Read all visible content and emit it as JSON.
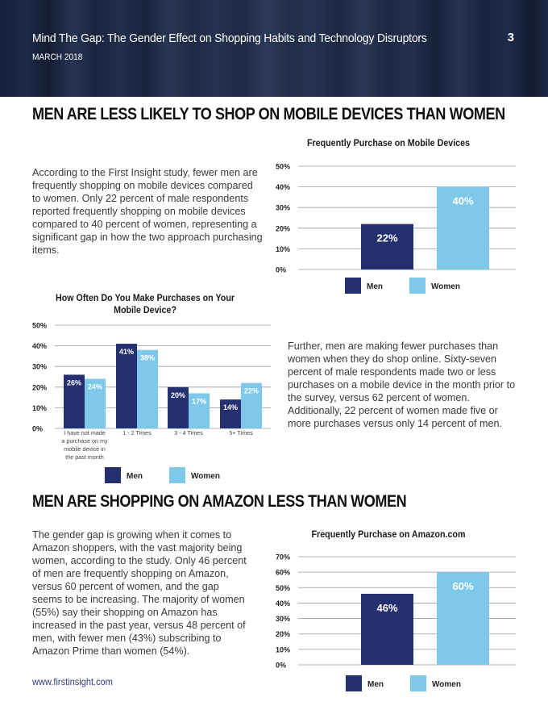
{
  "header": {
    "title": "Mind The Gap:  The Gender Effect on Shopping Habits and Technology Disruptors",
    "date": "MARCH 2018",
    "page_number": "3"
  },
  "section1": {
    "title": "MEN ARE LESS LIKELY TO SHOP ON MOBILE DEVICES THAN WOMEN",
    "paragraph": "According to the First Insight study, fewer men are frequently shopping on mobile devices compared to women. Only 22 percent of male respondents reported frequently shopping on mobile devices compared to 40 percent of women, representing a significant gap in how the two approach purchasing items."
  },
  "section1b": {
    "paragraph": "Further, men are making fewer purchases than women when they do shop online. Sixty-seven percent of male respondents made two or less purchases on a mobile device in the month prior to the survey, versus 62 percent of women. Additionally, 22 percent of women made five or more purchases versus only 14 percent of men."
  },
  "section2": {
    "title": "MEN ARE SHOPPING ON AMAZON LESS THAN WOMEN",
    "paragraph": "The gender gap is growing when it comes to Amazon shoppers, with the vast majority being women, according to the study. Only 46 percent of men are frequently shopping on Amazon, versus 60 percent of women, and the gap seems to be increasing. The majority of women (55%) say their shopping on Amazon has increased in the past year, versus 48 percent of men, with fewer men (43%) subscribing to Amazon Prime than women (54%)."
  },
  "footer": {
    "url": "www.firstinsight.com"
  },
  "colors": {
    "men": "#253070",
    "women": "#7ec8ea",
    "header_bg": "#18223c",
    "grid": "#9a9a9a"
  },
  "chart_data": [
    {
      "type": "bar",
      "title": "Frequently Purchase on Mobile Devices",
      "categories": [
        ""
      ],
      "series": [
        {
          "name": "Men",
          "values": [
            22
          ]
        },
        {
          "name": "Women",
          "values": [
            40
          ]
        }
      ],
      "data_labels": [
        "22%",
        "40%"
      ],
      "yticks": [
        "0%",
        "10%",
        "20%",
        "30%",
        "40%",
        "50%"
      ],
      "ylim": [
        0,
        50
      ],
      "legend": [
        "Men",
        "Women"
      ]
    },
    {
      "type": "bar",
      "title": "How Often Do You Make Purchases on Your Mobile Device?",
      "categories": [
        "I have not made a purchase on my mobile device in the past month",
        "1 - 2 Times",
        "3 - 4 Times",
        "5+ Times"
      ],
      "category_lines": [
        [
          "I have not made",
          "a purchase on my",
          "mobile device in",
          "the past month"
        ],
        [
          "1 - 2 Times"
        ],
        [
          "3 - 4 Times"
        ],
        [
          "5+ Times"
        ]
      ],
      "series": [
        {
          "name": "Men",
          "values": [
            26,
            41,
            20,
            14
          ],
          "labels": [
            "26%",
            "41%",
            "20%",
            "14%"
          ]
        },
        {
          "name": "Women",
          "values": [
            24,
            38,
            17,
            22
          ],
          "labels": [
            "24%",
            "38%",
            "17%",
            "22%"
          ]
        }
      ],
      "yticks": [
        "0%",
        "10%",
        "20%",
        "30%",
        "40%",
        "50%"
      ],
      "ylim": [
        0,
        50
      ],
      "legend": [
        "Men",
        "Women"
      ]
    },
    {
      "type": "bar",
      "title": "Frequently Purchase on Amazon.com",
      "categories": [
        ""
      ],
      "series": [
        {
          "name": "Men",
          "values": [
            46
          ]
        },
        {
          "name": "Women",
          "values": [
            60
          ]
        }
      ],
      "data_labels": [
        "46%",
        "60%"
      ],
      "yticks": [
        "0%",
        "10%",
        "20%",
        "30%",
        "40%",
        "50%",
        "60%",
        "70%"
      ],
      "ylim": [
        0,
        70
      ],
      "legend": [
        "Men",
        "Women"
      ]
    }
  ]
}
